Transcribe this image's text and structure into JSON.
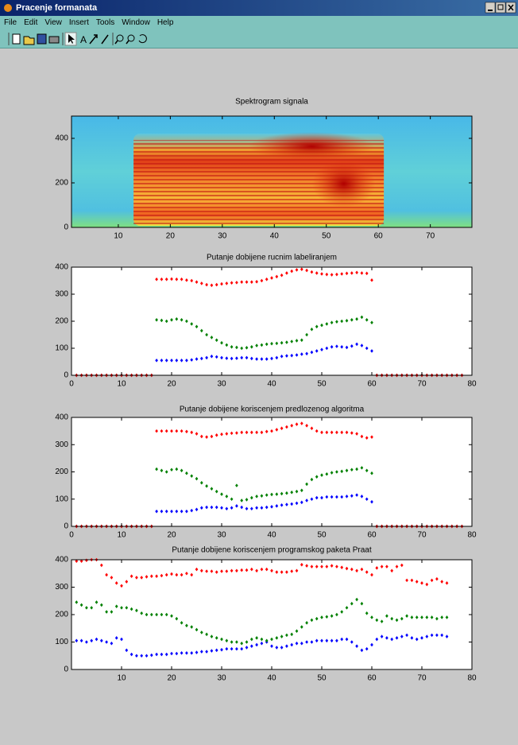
{
  "window": {
    "title": "Pracenje formanata",
    "menu": [
      "File",
      "Edit",
      "View",
      "Insert",
      "Tools",
      "Window",
      "Help"
    ]
  },
  "chart_data": [
    {
      "type": "image",
      "title": "Spektrogram signala",
      "xlim": [
        1,
        78
      ],
      "ylim": [
        0,
        500
      ],
      "xticks": [
        10,
        20,
        30,
        40,
        50,
        60,
        70
      ],
      "yticks": [
        0,
        200,
        400
      ]
    },
    {
      "type": "scatter",
      "title": "Putanje dobijene rucnim labeliranjem",
      "marker": "diamond",
      "xlim": [
        0,
        80
      ],
      "ylim": [
        0,
        400
      ],
      "xticks": [
        0,
        10,
        20,
        30,
        40,
        50,
        60,
        70,
        80
      ],
      "yticks": [
        0,
        100,
        200,
        300,
        400
      ],
      "x": [
        1,
        2,
        3,
        4,
        5,
        6,
        7,
        8,
        9,
        10,
        11,
        12,
        13,
        14,
        15,
        16,
        17,
        18,
        19,
        20,
        21,
        22,
        23,
        24,
        25,
        26,
        27,
        28,
        29,
        30,
        31,
        32,
        33,
        34,
        35,
        36,
        37,
        38,
        39,
        40,
        41,
        42,
        43,
        44,
        45,
        46,
        47,
        48,
        49,
        50,
        51,
        52,
        53,
        54,
        55,
        56,
        57,
        58,
        59,
        60,
        61,
        62,
        63,
        64,
        65,
        66,
        67,
        68,
        69,
        70,
        71,
        72,
        73,
        74,
        75,
        76,
        77,
        78
      ],
      "series": [
        {
          "color": "#0000ff",
          "values": [
            0,
            0,
            0,
            0,
            0,
            0,
            0,
            0,
            0,
            0,
            0,
            0,
            0,
            0,
            0,
            0,
            55,
            55,
            55,
            55,
            55,
            55,
            55,
            57,
            60,
            62,
            65,
            70,
            68,
            65,
            63,
            62,
            63,
            65,
            65,
            62,
            60,
            60,
            60,
            62,
            65,
            70,
            72,
            73,
            75,
            78,
            80,
            85,
            90,
            95,
            100,
            105,
            107,
            105,
            103,
            108,
            115,
            110,
            100,
            90,
            0,
            0,
            0,
            0,
            0,
            0,
            0,
            0,
            0,
            0,
            0,
            0,
            0,
            0,
            0,
            0,
            0,
            0
          ]
        },
        {
          "color": "#008000",
          "values": [
            0,
            0,
            0,
            0,
            0,
            0,
            0,
            0,
            0,
            0,
            0,
            0,
            0,
            0,
            0,
            0,
            205,
            203,
            200,
            205,
            208,
            205,
            200,
            190,
            180,
            165,
            150,
            140,
            130,
            120,
            112,
            105,
            103,
            100,
            102,
            105,
            110,
            112,
            115,
            117,
            118,
            120,
            122,
            125,
            128,
            130,
            150,
            170,
            180,
            185,
            190,
            195,
            198,
            200,
            202,
            205,
            208,
            215,
            205,
            195,
            0,
            0,
            0,
            0,
            0,
            0,
            0,
            0,
            0,
            0,
            0,
            0,
            0,
            0,
            0,
            0,
            0,
            0
          ]
        },
        {
          "color": "#ff0000",
          "values": [
            0,
            0,
            0,
            0,
            0,
            0,
            0,
            0,
            0,
            0,
            0,
            0,
            0,
            0,
            0,
            0,
            355,
            355,
            355,
            356,
            355,
            355,
            352,
            350,
            345,
            340,
            335,
            333,
            335,
            338,
            340,
            342,
            343,
            345,
            345,
            345,
            346,
            350,
            355,
            360,
            365,
            370,
            378,
            385,
            390,
            392,
            388,
            382,
            378,
            375,
            373,
            372,
            373,
            375,
            377,
            378,
            380,
            378,
            377,
            352,
            0,
            0,
            0,
            0,
            0,
            0,
            0,
            0,
            0,
            0,
            0,
            0,
            0,
            0,
            0,
            0,
            0,
            0
          ]
        }
      ]
    },
    {
      "type": "scatter",
      "title": "Putanje dobijene koriscenjem predlozenog algoritma",
      "marker": "diamond",
      "xlim": [
        0,
        80
      ],
      "ylim": [
        0,
        400
      ],
      "xticks": [
        0,
        10,
        20,
        30,
        40,
        50,
        60,
        70,
        80
      ],
      "yticks": [
        0,
        100,
        200,
        300,
        400
      ],
      "x": [
        1,
        2,
        3,
        4,
        5,
        6,
        7,
        8,
        9,
        10,
        11,
        12,
        13,
        14,
        15,
        16,
        17,
        18,
        19,
        20,
        21,
        22,
        23,
        24,
        25,
        26,
        27,
        28,
        29,
        30,
        31,
        32,
        33,
        34,
        35,
        36,
        37,
        38,
        39,
        40,
        41,
        42,
        43,
        44,
        45,
        46,
        47,
        48,
        49,
        50,
        51,
        52,
        53,
        54,
        55,
        56,
        57,
        58,
        59,
        60,
        61,
        62,
        63,
        64,
        65,
        66,
        67,
        68,
        69,
        70,
        71,
        72,
        73,
        74,
        75,
        76,
        77,
        78
      ],
      "series": [
        {
          "color": "#0000ff",
          "values": [
            0,
            0,
            0,
            0,
            0,
            0,
            0,
            0,
            0,
            0,
            0,
            0,
            0,
            0,
            0,
            0,
            55,
            55,
            55,
            55,
            55,
            55,
            55,
            58,
            62,
            68,
            70,
            70,
            70,
            68,
            65,
            68,
            75,
            70,
            65,
            65,
            68,
            68,
            70,
            72,
            75,
            78,
            80,
            82,
            85,
            88,
            95,
            100,
            105,
            105,
            108,
            108,
            108,
            108,
            110,
            112,
            115,
            110,
            100,
            90,
            0,
            0,
            0,
            0,
            0,
            0,
            0,
            0,
            0,
            0,
            0,
            0,
            0,
            0,
            0,
            0,
            0,
            0
          ]
        },
        {
          "color": "#008000",
          "values": [
            0,
            0,
            0,
            0,
            0,
            0,
            0,
            0,
            0,
            0,
            0,
            0,
            0,
            0,
            0,
            0,
            210,
            205,
            200,
            208,
            210,
            205,
            195,
            185,
            175,
            160,
            148,
            138,
            128,
            118,
            110,
            100,
            150,
            95,
            98,
            105,
            110,
            112,
            115,
            117,
            118,
            120,
            122,
            125,
            128,
            132,
            155,
            172,
            182,
            188,
            192,
            197,
            200,
            202,
            205,
            208,
            210,
            215,
            205,
            195,
            0,
            0,
            0,
            0,
            0,
            0,
            0,
            0,
            0,
            0,
            0,
            0,
            0,
            0,
            0,
            0,
            0,
            0
          ]
        },
        {
          "color": "#ff0000",
          "values": [
            0,
            0,
            0,
            0,
            0,
            0,
            0,
            0,
            0,
            0,
            0,
            0,
            0,
            0,
            0,
            0,
            350,
            350,
            350,
            350,
            350,
            350,
            348,
            345,
            340,
            330,
            328,
            330,
            335,
            338,
            340,
            342,
            343,
            345,
            345,
            345,
            345,
            345,
            348,
            350,
            355,
            360,
            365,
            370,
            375,
            378,
            370,
            360,
            350,
            345,
            345,
            345,
            345,
            345,
            345,
            343,
            340,
            330,
            325,
            328,
            0,
            0,
            0,
            0,
            0,
            0,
            0,
            0,
            0,
            0,
            0,
            0,
            0,
            0,
            0,
            0,
            0,
            0
          ]
        }
      ]
    },
    {
      "type": "scatter",
      "title": "Putanje dobijene koriscenjem programskog paketa Praat",
      "marker": "diamond",
      "xlim": [
        0,
        80
      ],
      "ylim": [
        0,
        400
      ],
      "xticks": [
        10,
        20,
        30,
        40,
        50,
        60,
        70,
        80
      ],
      "yticks": [
        0,
        100,
        200,
        300,
        400
      ],
      "x": [
        1,
        2,
        3,
        4,
        5,
        6,
        7,
        8,
        9,
        10,
        11,
        12,
        13,
        14,
        15,
        16,
        17,
        18,
        19,
        20,
        21,
        22,
        23,
        24,
        25,
        26,
        27,
        28,
        29,
        30,
        31,
        32,
        33,
        34,
        35,
        36,
        37,
        38,
        39,
        40,
        41,
        42,
        43,
        44,
        45,
        46,
        47,
        48,
        49,
        50,
        51,
        52,
        53,
        54,
        55,
        56,
        57,
        58,
        59,
        60,
        61,
        62,
        63,
        64,
        65,
        66,
        67,
        68,
        69,
        70,
        71,
        72,
        73,
        74,
        75
      ],
      "series": [
        {
          "color": "#0000ff",
          "values": [
            105,
            105,
            100,
            105,
            110,
            105,
            100,
            95,
            115,
            110,
            70,
            55,
            50,
            50,
            50,
            52,
            55,
            55,
            55,
            58,
            58,
            60,
            60,
            60,
            62,
            65,
            65,
            68,
            70,
            72,
            75,
            75,
            75,
            75,
            80,
            85,
            90,
            95,
            100,
            85,
            80,
            80,
            85,
            90,
            95,
            95,
            100,
            100,
            105,
            105,
            105,
            105,
            105,
            110,
            110,
            100,
            85,
            70,
            75,
            90,
            110,
            120,
            115,
            110,
            115,
            120,
            125,
            115,
            110,
            115,
            120,
            125,
            125,
            125,
            120
          ]
        },
        {
          "color": "#008000",
          "values": [
            245,
            235,
            225,
            225,
            245,
            235,
            210,
            210,
            230,
            225,
            225,
            220,
            215,
            205,
            200,
            200,
            200,
            200,
            200,
            195,
            185,
            170,
            160,
            155,
            145,
            135,
            128,
            120,
            115,
            110,
            105,
            100,
            100,
            95,
            100,
            110,
            115,
            110,
            105,
            110,
            115,
            120,
            125,
            128,
            140,
            155,
            170,
            180,
            185,
            190,
            192,
            195,
            200,
            210,
            225,
            240,
            255,
            240,
            205,
            190,
            180,
            175,
            195,
            185,
            180,
            185,
            195,
            190,
            190,
            190,
            190,
            190,
            185,
            190,
            190
          ]
        },
        {
          "color": "#ff0000",
          "values": [
            395,
            395,
            398,
            400,
            400,
            380,
            345,
            335,
            315,
            305,
            320,
            340,
            335,
            335,
            338,
            340,
            340,
            342,
            345,
            348,
            345,
            345,
            350,
            345,
            365,
            360,
            358,
            358,
            355,
            358,
            358,
            360,
            360,
            362,
            362,
            365,
            360,
            365,
            365,
            360,
            355,
            355,
            355,
            358,
            360,
            382,
            378,
            375,
            375,
            375,
            375,
            378,
            375,
            372,
            368,
            365,
            360,
            365,
            355,
            345,
            370,
            375,
            375,
            360,
            375,
            380,
            325,
            325,
            320,
            315,
            310,
            325,
            330,
            320,
            315
          ]
        }
      ]
    }
  ]
}
